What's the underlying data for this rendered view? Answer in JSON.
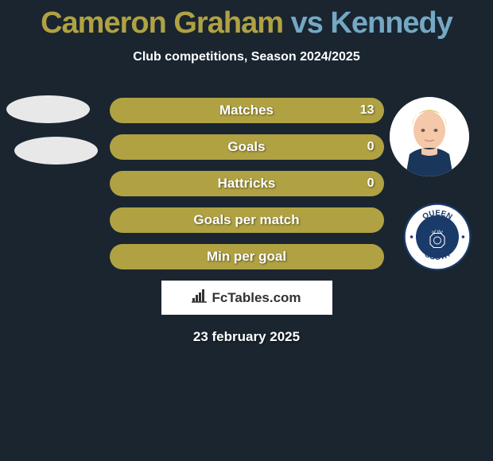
{
  "title": {
    "player1": "Cameron Graham",
    "vs": "vs",
    "player2": "Kennedy",
    "player1_color": "#b0a242",
    "vs_color": "#74a8c4",
    "player2_color": "#74a8c4"
  },
  "subtitle": "Club competitions, Season 2024/2025",
  "stats": [
    {
      "label": "Matches",
      "left_width": 0,
      "right_width": 345,
      "right_value": "13",
      "color": "#b0a242"
    },
    {
      "label": "Goals",
      "left_width": 0,
      "right_width": 345,
      "right_value": "0",
      "color": "#b0a242"
    },
    {
      "label": "Hattricks",
      "left_width": 0,
      "right_width": 345,
      "right_value": "0",
      "color": "#b0a242"
    },
    {
      "label": "Goals per match",
      "left_width": 0,
      "right_width": 345,
      "right_value": "",
      "color": "#b0a242"
    },
    {
      "label": "Min per goal",
      "left_width": 0,
      "right_width": 345,
      "right_value": "",
      "color": "#b0a242"
    }
  ],
  "brand": "FcTables.com",
  "date": "23 february 2025",
  "badge_right": {
    "top": "QUEEN",
    "middle": "of the",
    "bottom": "SOUTH"
  },
  "colors": {
    "background": "#1a2530",
    "bar": "#b0a242",
    "text": "#ffffff"
  }
}
